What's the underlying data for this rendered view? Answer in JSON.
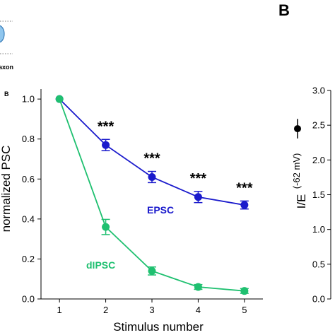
{
  "panel_letter": "B",
  "inset_fragment_label": "axon",
  "corner_fragment": "B",
  "chart_data": [
    {
      "type": "line",
      "xlabel": "Stimulus number",
      "ylabel": "normalized PSC",
      "xlim": [
        0.6,
        5.4
      ],
      "ylim": [
        0.0,
        1.05
      ],
      "x_ticks": [
        1,
        2,
        3,
        4,
        5
      ],
      "y_ticks": [
        0.0,
        0.2,
        0.4,
        0.6,
        0.8,
        1.0
      ],
      "y_tick_labels": [
        "0.0",
        "0.2",
        "0.4",
        "0.6",
        "0.8",
        "1.0"
      ],
      "series": [
        {
          "name": "EPSC",
          "color": "#1a1acc",
          "x": [
            1,
            2,
            3,
            4,
            5
          ],
          "y": [
            1.0,
            0.77,
            0.61,
            0.51,
            0.47
          ],
          "err": [
            0.0,
            0.028,
            0.028,
            0.028,
            0.02
          ]
        },
        {
          "name": "dIPSC",
          "color": "#1fc070",
          "x": [
            1,
            2,
            3,
            4,
            5
          ],
          "y": [
            1.0,
            0.36,
            0.14,
            0.06,
            0.04
          ],
          "err": [
            0.0,
            0.038,
            0.02,
            0.012,
            0.012
          ]
        }
      ],
      "annotations": [
        {
          "text": "***",
          "x": 2
        },
        {
          "text": "***",
          "x": 3
        },
        {
          "text": "***",
          "x": 4
        },
        {
          "text": "***",
          "x": 5
        }
      ]
    },
    {
      "type": "scatter",
      "ylabel": "I/E",
      "ylabel_sub": "(-62 mV)",
      "ylim": [
        0.0,
        3.0
      ],
      "y_ticks": [
        0.0,
        0.5,
        1.0,
        1.5,
        2.0,
        2.5,
        3.0
      ],
      "y_tick_labels": [
        "0.0",
        "0.5",
        "1.0",
        "1.5",
        "2.0",
        "2.5",
        "3.0"
      ],
      "points": [
        {
          "y": 2.45,
          "err": 0.1
        }
      ]
    }
  ]
}
